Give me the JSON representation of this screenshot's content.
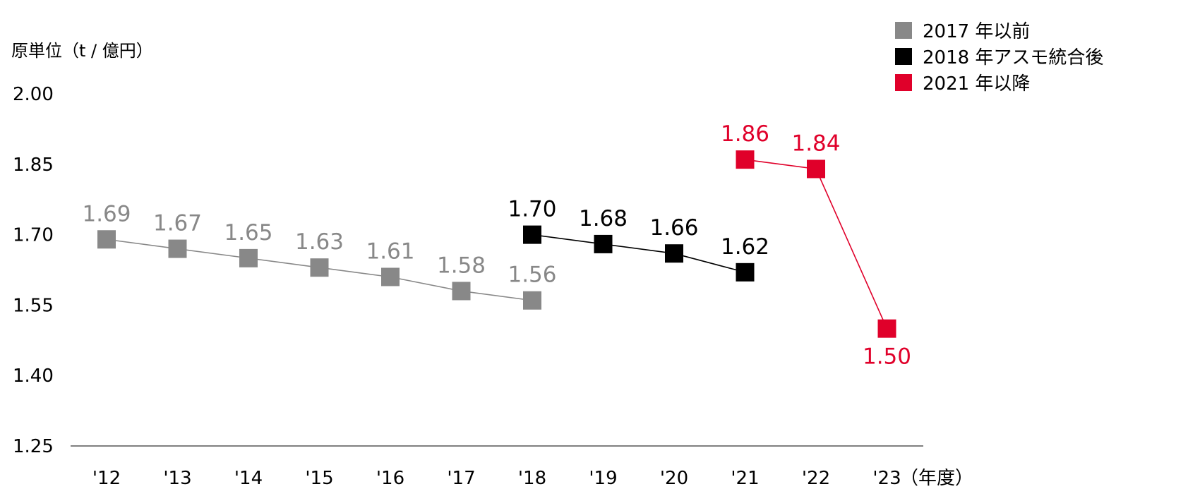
{
  "chart_data": {
    "type": "line",
    "ylabel": "原単位（t / 億円）",
    "x_unit": "（年度）",
    "ylim": [
      1.25,
      2.0
    ],
    "yticks": [
      "2.00",
      "1.85",
      "1.70",
      "1.55",
      "1.40",
      "1.25"
    ],
    "categories": [
      "'12",
      "'13",
      "'14",
      "'15",
      "'16",
      "'17",
      "'18",
      "'19",
      "'20",
      "'21",
      "'22",
      "'23"
    ],
    "grid": false,
    "legend_position": "top-right",
    "series": [
      {
        "name": "2017 年以前",
        "color": "#888888",
        "points": [
          {
            "x": "'12",
            "y": 1.69,
            "label": "1.69"
          },
          {
            "x": "'13",
            "y": 1.67,
            "label": "1.67"
          },
          {
            "x": "'14",
            "y": 1.65,
            "label": "1.65"
          },
          {
            "x": "'15",
            "y": 1.63,
            "label": "1.63"
          },
          {
            "x": "'16",
            "y": 1.61,
            "label": "1.61"
          },
          {
            "x": "'17",
            "y": 1.58,
            "label": "1.58"
          },
          {
            "x": "'18",
            "y": 1.56,
            "label": "1.56"
          }
        ]
      },
      {
        "name": "2018 年アスモ統合後",
        "color": "#000000",
        "points": [
          {
            "x": "'18",
            "y": 1.7,
            "label": "1.70"
          },
          {
            "x": "'19",
            "y": 1.68,
            "label": "1.68"
          },
          {
            "x": "'20",
            "y": 1.66,
            "label": "1.66"
          },
          {
            "x": "'21",
            "y": 1.62,
            "label": "1.62"
          }
        ]
      },
      {
        "name": "2021 年以降",
        "color": "#e0002a",
        "points": [
          {
            "x": "'21",
            "y": 1.86,
            "label": "1.86"
          },
          {
            "x": "'22",
            "y": 1.84,
            "label": "1.84"
          },
          {
            "x": "'23",
            "y": 1.5,
            "label": "1.50"
          }
        ]
      }
    ]
  }
}
